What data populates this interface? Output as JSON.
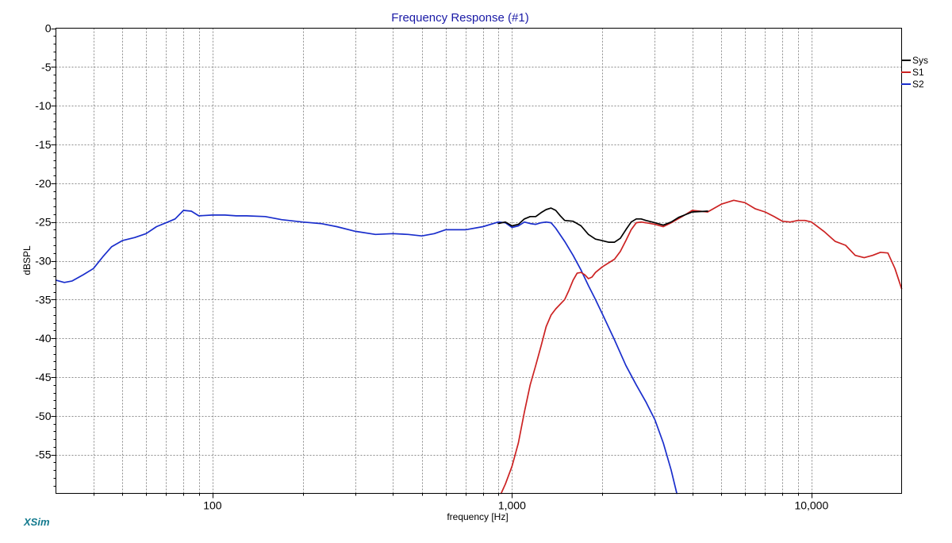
{
  "brand": "XSim",
  "chart_data": {
    "type": "line",
    "title": "Frequency Response (#1)",
    "xlabel": "frequency [Hz]",
    "ylabel": "dBSPL",
    "x_scale": "log",
    "xlim": [
      30,
      20000
    ],
    "ylim": [
      -60,
      0
    ],
    "grid": true,
    "legend_position": "right",
    "x_tick_labels": [
      {
        "value": 100,
        "label": "100"
      },
      {
        "value": 1000,
        "label": "1,000"
      },
      {
        "value": 10000,
        "label": "10,000"
      }
    ],
    "y_tick_labels": [
      {
        "value": 0,
        "label": "0"
      },
      {
        "value": -5,
        "label": "-5"
      },
      {
        "value": -10,
        "label": "-10"
      },
      {
        "value": -15,
        "label": "-15"
      },
      {
        "value": -20,
        "label": "-20"
      },
      {
        "value": -25,
        "label": "-25"
      },
      {
        "value": -30,
        "label": "-30"
      },
      {
        "value": -35,
        "label": "-35"
      },
      {
        "value": -40,
        "label": "-40"
      },
      {
        "value": -45,
        "label": "-45"
      },
      {
        "value": -50,
        "label": "-50"
      },
      {
        "value": -55,
        "label": "-55"
      }
    ],
    "series": [
      {
        "name": "Sys",
        "color": "#000000",
        "points": [
          [
            900,
            -25.2
          ],
          [
            950,
            -25.0
          ],
          [
            1000,
            -25.5
          ],
          [
            1050,
            -25.3
          ],
          [
            1100,
            -24.6
          ],
          [
            1150,
            -24.3
          ],
          [
            1200,
            -24.3
          ],
          [
            1250,
            -23.8
          ],
          [
            1300,
            -23.4
          ],
          [
            1350,
            -23.2
          ],
          [
            1400,
            -23.5
          ],
          [
            1450,
            -24.2
          ],
          [
            1500,
            -24.8
          ],
          [
            1600,
            -24.9
          ],
          [
            1700,
            -25.5
          ],
          [
            1800,
            -26.6
          ],
          [
            1900,
            -27.2
          ],
          [
            2000,
            -27.4
          ],
          [
            2100,
            -27.6
          ],
          [
            2200,
            -27.6
          ],
          [
            2300,
            -27.1
          ],
          [
            2400,
            -26.0
          ],
          [
            2500,
            -25.0
          ],
          [
            2600,
            -24.6
          ],
          [
            2700,
            -24.6
          ],
          [
            2800,
            -24.8
          ],
          [
            3000,
            -25.1
          ],
          [
            3200,
            -25.4
          ],
          [
            3400,
            -25.0
          ],
          [
            3600,
            -24.4
          ],
          [
            4000,
            -23.7
          ],
          [
            4500,
            -23.6
          ]
        ]
      },
      {
        "name": "S1",
        "color": "#cc2222",
        "points": [
          [
            920,
            -60.0
          ],
          [
            950,
            -58.8
          ],
          [
            1000,
            -56.5
          ],
          [
            1050,
            -53.5
          ],
          [
            1100,
            -49.5
          ],
          [
            1150,
            -46.0
          ],
          [
            1200,
            -43.5
          ],
          [
            1250,
            -41.0
          ],
          [
            1300,
            -38.5
          ],
          [
            1350,
            -37.0
          ],
          [
            1400,
            -36.2
          ],
          [
            1500,
            -35.0
          ],
          [
            1550,
            -33.8
          ],
          [
            1600,
            -32.5
          ],
          [
            1650,
            -31.6
          ],
          [
            1700,
            -31.5
          ],
          [
            1750,
            -31.8
          ],
          [
            1800,
            -32.3
          ],
          [
            1850,
            -32.1
          ],
          [
            1900,
            -31.5
          ],
          [
            2000,
            -30.8
          ],
          [
            2200,
            -29.8
          ],
          [
            2300,
            -28.8
          ],
          [
            2400,
            -27.4
          ],
          [
            2500,
            -26.0
          ],
          [
            2600,
            -25.1
          ],
          [
            2700,
            -25.0
          ],
          [
            2800,
            -25.1
          ],
          [
            3000,
            -25.3
          ],
          [
            3200,
            -25.6
          ],
          [
            3400,
            -25.1
          ],
          [
            3700,
            -24.3
          ],
          [
            4000,
            -23.5
          ],
          [
            4500,
            -23.7
          ],
          [
            5000,
            -22.7
          ],
          [
            5500,
            -22.2
          ],
          [
            6000,
            -22.5
          ],
          [
            6500,
            -23.3
          ],
          [
            7000,
            -23.7
          ],
          [
            7500,
            -24.3
          ],
          [
            8000,
            -24.9
          ],
          [
            8500,
            -25.0
          ],
          [
            9000,
            -24.8
          ],
          [
            9500,
            -24.8
          ],
          [
            10000,
            -25.0
          ],
          [
            11000,
            -26.2
          ],
          [
            12000,
            -27.5
          ],
          [
            13000,
            -28.0
          ],
          [
            14000,
            -29.3
          ],
          [
            15000,
            -29.6
          ],
          [
            16000,
            -29.3
          ],
          [
            17000,
            -28.9
          ],
          [
            18000,
            -29.0
          ],
          [
            19000,
            -31.0
          ],
          [
            20000,
            -33.6
          ]
        ]
      },
      {
        "name": "S2",
        "color": "#1a2ecc",
        "points": [
          [
            30,
            -32.5
          ],
          [
            32,
            -32.8
          ],
          [
            34,
            -32.6
          ],
          [
            37,
            -31.8
          ],
          [
            40,
            -31.0
          ],
          [
            43,
            -29.5
          ],
          [
            46,
            -28.2
          ],
          [
            50,
            -27.4
          ],
          [
            55,
            -27.0
          ],
          [
            60,
            -26.5
          ],
          [
            65,
            -25.6
          ],
          [
            70,
            -25.1
          ],
          [
            75,
            -24.6
          ],
          [
            80,
            -23.5
          ],
          [
            85,
            -23.6
          ],
          [
            90,
            -24.2
          ],
          [
            100,
            -24.1
          ],
          [
            110,
            -24.1
          ],
          [
            120,
            -24.2
          ],
          [
            130,
            -24.2
          ],
          [
            150,
            -24.3
          ],
          [
            170,
            -24.7
          ],
          [
            200,
            -25.0
          ],
          [
            230,
            -25.2
          ],
          [
            260,
            -25.6
          ],
          [
            300,
            -26.2
          ],
          [
            350,
            -26.6
          ],
          [
            400,
            -26.5
          ],
          [
            450,
            -26.6
          ],
          [
            500,
            -26.8
          ],
          [
            550,
            -26.5
          ],
          [
            600,
            -26.0
          ],
          [
            700,
            -26.0
          ],
          [
            800,
            -25.6
          ],
          [
            900,
            -25.0
          ],
          [
            950,
            -25.1
          ],
          [
            1000,
            -25.7
          ],
          [
            1050,
            -25.5
          ],
          [
            1100,
            -25.0
          ],
          [
            1150,
            -25.2
          ],
          [
            1200,
            -25.3
          ],
          [
            1250,
            -25.1
          ],
          [
            1300,
            -25.0
          ],
          [
            1350,
            -25.1
          ],
          [
            1400,
            -25.8
          ],
          [
            1500,
            -27.5
          ],
          [
            1600,
            -29.3
          ],
          [
            1700,
            -31.2
          ],
          [
            1800,
            -33.2
          ],
          [
            1900,
            -35.0
          ],
          [
            2000,
            -36.8
          ],
          [
            2200,
            -40.2
          ],
          [
            2400,
            -43.5
          ],
          [
            2600,
            -46.0
          ],
          [
            2800,
            -48.2
          ],
          [
            3000,
            -50.5
          ],
          [
            3200,
            -53.5
          ],
          [
            3400,
            -57.0
          ],
          [
            3550,
            -60.0
          ]
        ]
      }
    ]
  }
}
